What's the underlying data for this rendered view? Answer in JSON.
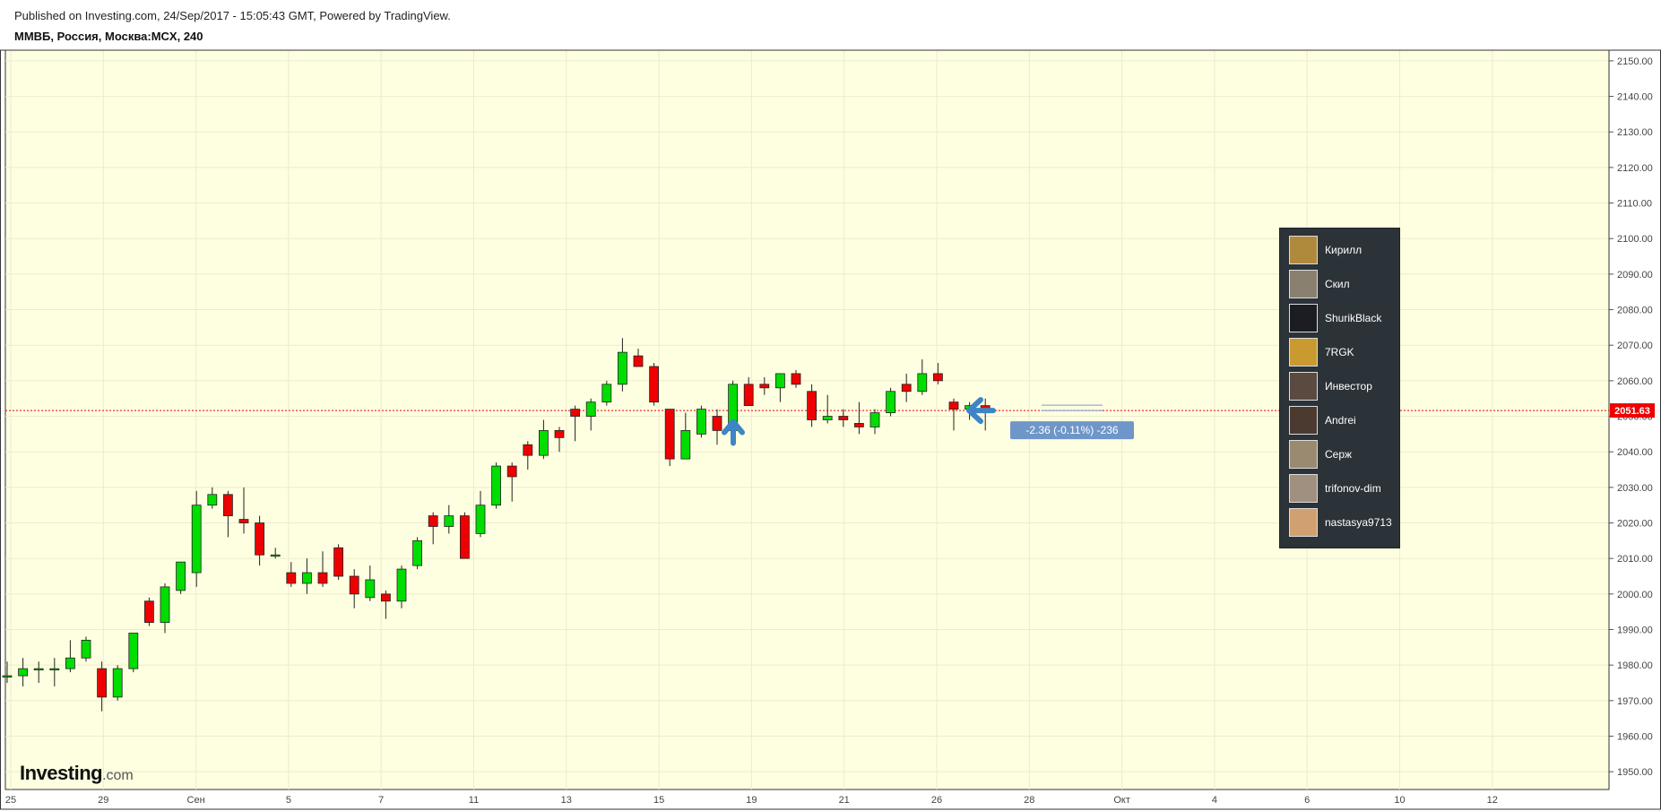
{
  "header": {
    "published": "Published on Investing.com, 24/Sep/2017 - 15:05:43 GMT, Powered by TradingView.",
    "symbol": "ММВБ, Россия, Москва:MCX, 240"
  },
  "logo": {
    "brand": "Investing",
    "suffix": ".com"
  },
  "price_label": "2051.63",
  "change_label": "-2.36 (-0.11%) -236",
  "users": [
    {
      "name": "Кирилл",
      "color": "#b08a3c"
    },
    {
      "name": "Скил",
      "color": "#8a8070"
    },
    {
      "name": "ShurikBlack",
      "color": "#1c1c24"
    },
    {
      "name": "7RGK",
      "color": "#c89a30"
    },
    {
      "name": "Инвестор",
      "color": "#5a4a40"
    },
    {
      "name": "Andrei",
      "color": "#4a3a30"
    },
    {
      "name": "Серж",
      "color": "#9a8a70"
    },
    {
      "name": "trifonov-dim",
      "color": "#a09080"
    },
    {
      "name": "nastasya9713",
      "color": "#d0a070"
    }
  ],
  "colors": {
    "background": "#fefee0",
    "up": "#00dd00",
    "down": "#ee0000",
    "price_line": "#ee0000",
    "arrow": "#3d85c6",
    "tooltip": "#6f96c8"
  },
  "chart_data": {
    "type": "candlestick",
    "ylim": [
      1945,
      2153
    ],
    "y_ticks": [
      1950,
      1960,
      1970,
      1980,
      1990,
      2000,
      2010,
      2020,
      2030,
      2040,
      2050,
      2060,
      2070,
      2080,
      2090,
      2100,
      2110,
      2120,
      2130,
      2140,
      2150
    ],
    "x_ticks": [
      "25",
      "29",
      "Сен",
      "5",
      "7",
      "11",
      "13",
      "15",
      "19",
      "21",
      "26",
      "28",
      "Окт",
      "4",
      "6",
      "10",
      "12"
    ],
    "current_price": 2051.63,
    "candles": [
      {
        "o": 1977,
        "h": 1981,
        "l": 1975,
        "c": 1977
      },
      {
        "o": 1977,
        "h": 1982,
        "l": 1974,
        "c": 1979
      },
      {
        "o": 1979,
        "h": 1981,
        "l": 1975,
        "c": 1979
      },
      {
        "o": 1979,
        "h": 1982,
        "l": 1974,
        "c": 1979
      },
      {
        "o": 1979,
        "h": 1987,
        "l": 1978,
        "c": 1982
      },
      {
        "o": 1982,
        "h": 1988,
        "l": 1981,
        "c": 1987
      },
      {
        "o": 1979,
        "h": 1981,
        "l": 1967,
        "c": 1971
      },
      {
        "o": 1971,
        "h": 1980,
        "l": 1970,
        "c": 1979
      },
      {
        "o": 1979,
        "h": 1989,
        "l": 1978,
        "c": 1989
      },
      {
        "o": 1998,
        "h": 1999,
        "l": 1991,
        "c": 1992
      },
      {
        "o": 1992,
        "h": 2003,
        "l": 1989,
        "c": 2002
      },
      {
        "o": 2001,
        "h": 2009,
        "l": 2000,
        "c": 2009
      },
      {
        "o": 2006,
        "h": 2029,
        "l": 2002,
        "c": 2025
      },
      {
        "o": 2025,
        "h": 2030,
        "l": 2024,
        "c": 2028
      },
      {
        "o": 2028,
        "h": 2029,
        "l": 2016,
        "c": 2022
      },
      {
        "o": 2021,
        "h": 2030,
        "l": 2017,
        "c": 2020
      },
      {
        "o": 2020,
        "h": 2022,
        "l": 2008,
        "c": 2011
      },
      {
        "o": 2011,
        "h": 2013,
        "l": 2010,
        "c": 2011
      },
      {
        "o": 2006,
        "h": 2009,
        "l": 2002,
        "c": 2003
      },
      {
        "o": 2003,
        "h": 2010,
        "l": 2000,
        "c": 2006
      },
      {
        "o": 2006,
        "h": 2012,
        "l": 2002,
        "c": 2003
      },
      {
        "o": 2013,
        "h": 2014,
        "l": 2004,
        "c": 2005
      },
      {
        "o": 2005,
        "h": 2007,
        "l": 1996,
        "c": 2000
      },
      {
        "o": 1999,
        "h": 2008,
        "l": 1998,
        "c": 2004
      },
      {
        "o": 2000,
        "h": 2001,
        "l": 1993,
        "c": 1998
      },
      {
        "o": 1998,
        "h": 2008,
        "l": 1996,
        "c": 2007
      },
      {
        "o": 2008,
        "h": 2016,
        "l": 2007,
        "c": 2015
      },
      {
        "o": 2022,
        "h": 2023,
        "l": 2014,
        "c": 2019
      },
      {
        "o": 2019,
        "h": 2025,
        "l": 2017,
        "c": 2022
      },
      {
        "o": 2022,
        "h": 2023,
        "l": 2010,
        "c": 2010
      },
      {
        "o": 2017,
        "h": 2029,
        "l": 2016,
        "c": 2025
      },
      {
        "o": 2025,
        "h": 2037,
        "l": 2024,
        "c": 2036
      },
      {
        "o": 2036,
        "h": 2037,
        "l": 2026,
        "c": 2033
      },
      {
        "o": 2042,
        "h": 2043,
        "l": 2035,
        "c": 2039
      },
      {
        "o": 2039,
        "h": 2049,
        "l": 2038,
        "c": 2046
      },
      {
        "o": 2046,
        "h": 2047,
        "l": 2040,
        "c": 2044
      },
      {
        "o": 2052,
        "h": 2053,
        "l": 2043,
        "c": 2050
      },
      {
        "o": 2050,
        "h": 2055,
        "l": 2046,
        "c": 2054
      },
      {
        "o": 2054,
        "h": 2060,
        "l": 2053,
        "c": 2059
      },
      {
        "o": 2059,
        "h": 2072,
        "l": 2057,
        "c": 2068
      },
      {
        "o": 2067,
        "h": 2069,
        "l": 2064,
        "c": 2064
      },
      {
        "o": 2064,
        "h": 2065,
        "l": 2053,
        "c": 2054
      },
      {
        "o": 2052,
        "h": 2052,
        "l": 2036,
        "c": 2038
      },
      {
        "o": 2038,
        "h": 2051,
        "l": 2038,
        "c": 2046
      },
      {
        "o": 2045,
        "h": 2053,
        "l": 2044,
        "c": 2052
      },
      {
        "o": 2050,
        "h": 2052,
        "l": 2042,
        "c": 2046
      },
      {
        "o": 2046,
        "h": 2060,
        "l": 2044,
        "c": 2059
      },
      {
        "o": 2059,
        "h": 2061,
        "l": 2053,
        "c": 2053
      },
      {
        "o": 2059,
        "h": 2061,
        "l": 2056,
        "c": 2058
      },
      {
        "o": 2058,
        "h": 2062,
        "l": 2054,
        "c": 2062
      },
      {
        "o": 2062,
        "h": 2063,
        "l": 2058,
        "c": 2059
      },
      {
        "o": 2057,
        "h": 2059,
        "l": 2047,
        "c": 2049
      },
      {
        "o": 2049,
        "h": 2056,
        "l": 2048,
        "c": 2050
      },
      {
        "o": 2050,
        "h": 2052,
        "l": 2047,
        "c": 2049
      },
      {
        "o": 2048,
        "h": 2054,
        "l": 2045,
        "c": 2047
      },
      {
        "o": 2047,
        "h": 2052,
        "l": 2045,
        "c": 2051
      },
      {
        "o": 2051,
        "h": 2058,
        "l": 2050,
        "c": 2057
      },
      {
        "o": 2059,
        "h": 2062,
        "l": 2054,
        "c": 2057
      },
      {
        "o": 2057,
        "h": 2066,
        "l": 2056,
        "c": 2062
      },
      {
        "o": 2062,
        "h": 2065,
        "l": 2059,
        "c": 2060
      },
      {
        "o": 2054,
        "h": 2055,
        "l": 2046,
        "c": 2052
      },
      {
        "o": 2052,
        "h": 2054,
        "l": 2049,
        "c": 2053
      },
      {
        "o": 2053,
        "h": 2055,
        "l": 2046,
        "c": 2051
      }
    ]
  }
}
